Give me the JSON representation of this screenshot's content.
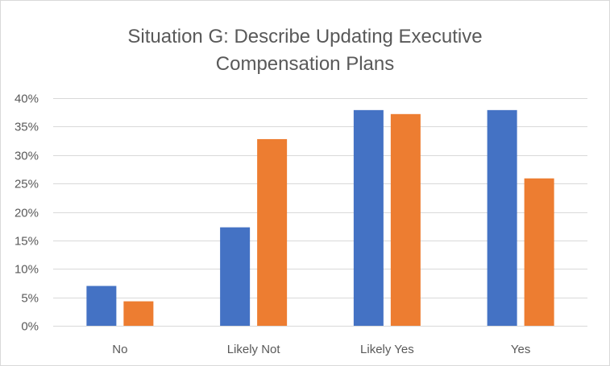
{
  "chart_data": {
    "type": "bar",
    "title_lines": [
      "Situation G: Describe Updating Executive",
      "Compensation Plans"
    ],
    "categories": [
      "No",
      "Likely Not",
      "Likely Yes",
      "Yes"
    ],
    "series": [
      {
        "values": [
          0.07,
          0.173,
          0.379,
          0.379
        ],
        "color": "#4472c4"
      },
      {
        "values": [
          0.043,
          0.328,
          0.372,
          0.259
        ],
        "color": "#ed7d31"
      }
    ],
    "ylim": [
      0,
      0.4
    ],
    "y_ticks": [
      0,
      0.05,
      0.1,
      0.15,
      0.2,
      0.25,
      0.3,
      0.35,
      0.4
    ],
    "y_tick_labels": [
      "0%",
      "5%",
      "10%",
      "15%",
      "20%",
      "25%",
      "30%",
      "35%",
      "40%"
    ],
    "grid": true,
    "legend": "none",
    "gridline_color": "#d9d9d9",
    "text_color": "#595959"
  }
}
